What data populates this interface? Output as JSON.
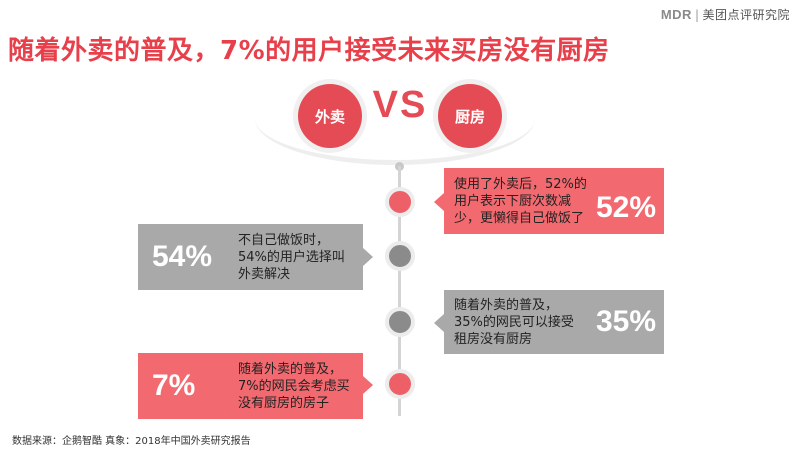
{
  "brand": {
    "logo": "MDR",
    "name": "美团点评研究院"
  },
  "title": "随着外卖的普及，7%的用户接受未来买房没有厨房",
  "compare": {
    "left": "外卖",
    "vs": "VS",
    "right": "厨房"
  },
  "cards": [
    {
      "text_lines": [
        "使用了外卖后，52%的",
        "用户表示下厨次数减",
        "少，更懒得自己做饭了"
      ],
      "percent": "52%"
    },
    {
      "text_lines": [
        "不自己做饭时，",
        "54%的用户选择叫",
        "外卖解决"
      ],
      "percent": "54%"
    },
    {
      "text_lines": [
        "随着外卖的普及，",
        "35%的网民可以接受",
        "租房没有厨房"
      ],
      "percent": "35%"
    },
    {
      "text_lines": [
        "随着外卖的普及，",
        "7%的网民会考虑买",
        "没有厨房的房子"
      ],
      "percent": "7%"
    }
  ],
  "source": "数据来源：企鹅智酷 真象：2018年中国外卖研究报告",
  "colors": {
    "accent_red": "#e44b55",
    "card_red": "#f26a70",
    "card_gray": "#a9a9a9",
    "node_gray": "#8b8b8b"
  }
}
